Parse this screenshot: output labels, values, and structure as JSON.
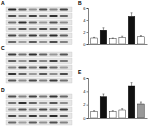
{
  "panel_labels": [
    "A",
    "B",
    "C",
    "D",
    "E"
  ],
  "chart_data": [
    {
      "type": "bar",
      "categories": [
        null,
        null,
        null,
        null,
        null,
        null
      ],
      "values": [
        1,
        2.3,
        0.9,
        1.1,
        4.6,
        1.2
      ],
      "errors": [
        0.1,
        0.4,
        0.1,
        0.2,
        0.6,
        0.2
      ],
      "colors": [
        "#ffffff",
        "#111111",
        "#ffffff",
        "#ffffff",
        "#111111",
        "#ffffff"
      ],
      "ylim": [
        0,
        6
      ],
      "yticks": [
        0,
        2,
        4,
        6
      ]
    },
    {
      "type": "bar",
      "categories": [
        null,
        null,
        null,
        null,
        null,
        null
      ],
      "values": [
        1,
        3.2,
        1,
        1.2,
        4.8,
        2.1
      ],
      "errors": [
        0.1,
        0.4,
        0.1,
        0.2,
        0.5,
        0.3
      ],
      "colors": [
        "#ffffff",
        "#111111",
        "#ffffff",
        "#ffffff",
        "#111111",
        "#999999"
      ],
      "ylim": [
        0,
        6
      ],
      "yticks": [
        0,
        2,
        4,
        6
      ]
    }
  ]
}
